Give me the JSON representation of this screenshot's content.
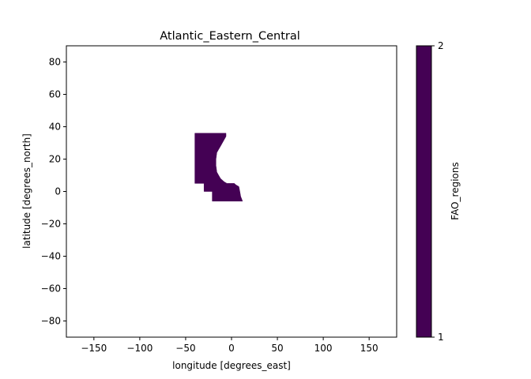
{
  "chart_data": {
    "type": "heatmap",
    "title": "Atlantic_Eastern_Central",
    "xlabel": "longitude [degrees_east]",
    "ylabel": "latitude [degrees_north]",
    "xlim": [
      -180,
      180
    ],
    "ylim": [
      -90,
      90
    ],
    "xticks": [
      -150,
      -100,
      -50,
      0,
      50,
      100,
      150
    ],
    "yticks": [
      -80,
      -60,
      -40,
      -20,
      0,
      20,
      40,
      60,
      80
    ],
    "xtick_labels": [
      "−150",
      "−100",
      "−50",
      "0",
      "50",
      "100",
      "150"
    ],
    "ytick_labels": [
      "−80",
      "−60",
      "−40",
      "−20",
      "0",
      "20",
      "40",
      "60",
      "80"
    ],
    "grid": false,
    "region": {
      "name": "Atlantic_Eastern_Central",
      "value": 1,
      "color": "#440154",
      "outline": [
        [
          -40,
          36
        ],
        [
          -6,
          36
        ],
        [
          -6,
          34
        ],
        [
          -8,
          32
        ],
        [
          -10,
          30
        ],
        [
          -12,
          28
        ],
        [
          -14,
          26
        ],
        [
          -16,
          24
        ],
        [
          -17,
          20
        ],
        [
          -17,
          16
        ],
        [
          -16,
          12
        ],
        [
          -14,
          10
        ],
        [
          -12,
          8
        ],
        [
          -8,
          6
        ],
        [
          -5,
          5
        ],
        [
          -1,
          5
        ],
        [
          3,
          5
        ],
        [
          5,
          4
        ],
        [
          8,
          3
        ],
        [
          9,
          0
        ],
        [
          10,
          -3
        ],
        [
          12,
          -6
        ],
        [
          -21,
          -6
        ],
        [
          -21,
          0
        ],
        [
          -30,
          0
        ],
        [
          -30,
          5
        ],
        [
          -40,
          5
        ]
      ]
    },
    "colorbar": {
      "label": "FAO_regions",
      "min": 1,
      "max": 2,
      "ticks": [
        1,
        2
      ],
      "tick_labels": [
        "1",
        "2"
      ],
      "color": "#440154"
    }
  }
}
